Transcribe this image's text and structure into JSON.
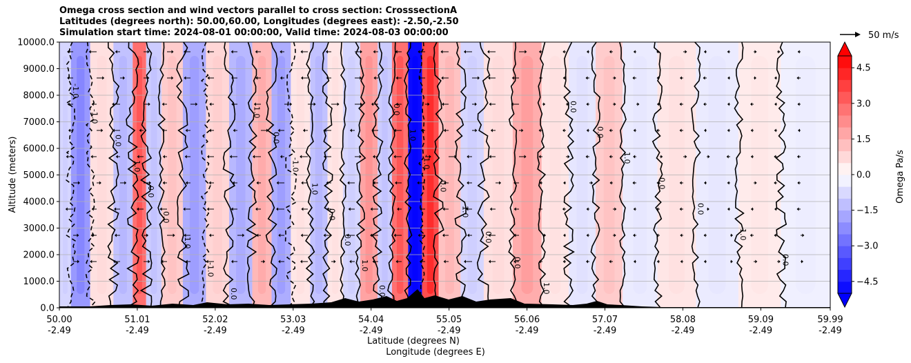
{
  "chart_data": {
    "type": "heatmap",
    "title_lines": [
      "Omega cross section and wind vectors parallel to cross section: CrosssectionA",
      "Latitudes (degrees north): 50.00,60.00, Longitudes (degrees east): -2.50,-2.50",
      "Simulation start time: 2024-08-01 00:00:00, Valid time: 2024-08-03 00:00:00"
    ],
    "ylabel": "Altitude (meters)",
    "xlabel_lines": [
      "Latitude (degrees N)",
      "Longitude (degrees E)"
    ],
    "ylim": [
      0,
      10000
    ],
    "y_ticks": [
      "0.0",
      "1000.0",
      "2000.0",
      "3000.0",
      "4000.0",
      "5000.0",
      "6000.0",
      "7000.0",
      "8000.0",
      "9000.0",
      "10000.0"
    ],
    "xlim": [
      50.0,
      59.99
    ],
    "x_ticks": [
      {
        "lat": "50.00",
        "lon": "-2.49"
      },
      {
        "lat": "51.01",
        "lon": "-2.49"
      },
      {
        "lat": "52.02",
        "lon": "-2.49"
      },
      {
        "lat": "53.03",
        "lon": "-2.49"
      },
      {
        "lat": "54.04",
        "lon": "-2.49"
      },
      {
        "lat": "55.05",
        "lon": "-2.49"
      },
      {
        "lat": "56.06",
        "lon": "-2.49"
      },
      {
        "lat": "57.07",
        "lon": "-2.49"
      },
      {
        "lat": "58.08",
        "lon": "-2.49"
      },
      {
        "lat": "59.09",
        "lon": "-2.49"
      },
      {
        "lat": "59.99",
        "lon": "-2.49"
      }
    ],
    "colorbar": {
      "label": "Omega Pa/s",
      "range": [
        -5.0,
        5.0
      ],
      "ticks": [
        "4.5",
        "3.0",
        "1.5",
        "0.0",
        "−1.5",
        "−3.0",
        "−4.5"
      ],
      "tick_values": [
        4.5,
        3.0,
        1.5,
        0.0,
        -1.5,
        -3.0,
        -4.5
      ],
      "levels": 20,
      "cmap": "bwr",
      "extend": "both"
    },
    "quiver_key": "50 m/s",
    "contour_labels": [
      "0.0",
      "1.0",
      "-1.0"
    ],
    "colors": {
      "positive": "#ff0000",
      "negative": "#0000ff",
      "neutral": "#ffffff",
      "terrain": "#000000"
    },
    "omega_bands": [
      {
        "lat": 50.05,
        "value": -0.8
      },
      {
        "lat": 50.25,
        "value": -2.0
      },
      {
        "lat": 50.55,
        "value": 0.6
      },
      {
        "lat": 50.85,
        "value": -1.2
      },
      {
        "lat": 51.05,
        "value": 2.8
      },
      {
        "lat": 51.2,
        "value": -1.0
      },
      {
        "lat": 51.45,
        "value": 1.0
      },
      {
        "lat": 51.75,
        "value": -1.6
      },
      {
        "lat": 52.05,
        "value": 0.8
      },
      {
        "lat": 52.35,
        "value": -1.4
      },
      {
        "lat": 52.65,
        "value": 1.4
      },
      {
        "lat": 52.85,
        "value": -1.6
      },
      {
        "lat": 53.15,
        "value": 0.5
      },
      {
        "lat": 53.35,
        "value": -1.2
      },
      {
        "lat": 53.6,
        "value": 0.5
      },
      {
        "lat": 53.75,
        "value": -0.8
      },
      {
        "lat": 54.05,
        "value": 1.8
      },
      {
        "lat": 54.2,
        "value": -1.0
      },
      {
        "lat": 54.42,
        "value": 2.8
      },
      {
        "lat": 54.62,
        "value": -4.8
      },
      {
        "lat": 54.78,
        "value": 3.5
      },
      {
        "lat": 55.05,
        "value": 1.2
      },
      {
        "lat": 55.35,
        "value": -0.8
      },
      {
        "lat": 55.65,
        "value": 0.6
      },
      {
        "lat": 56.1,
        "value": 1.6
      },
      {
        "lat": 56.4,
        "value": 0.5
      },
      {
        "lat": 56.8,
        "value": -0.5
      },
      {
        "lat": 57.1,
        "value": 1.0
      },
      {
        "lat": 57.5,
        "value": -0.4
      },
      {
        "lat": 58.0,
        "value": 0.5
      },
      {
        "lat": 58.5,
        "value": -0.4
      },
      {
        "lat": 59.1,
        "value": 0.4
      },
      {
        "lat": 59.6,
        "value": -0.3
      }
    ]
  }
}
